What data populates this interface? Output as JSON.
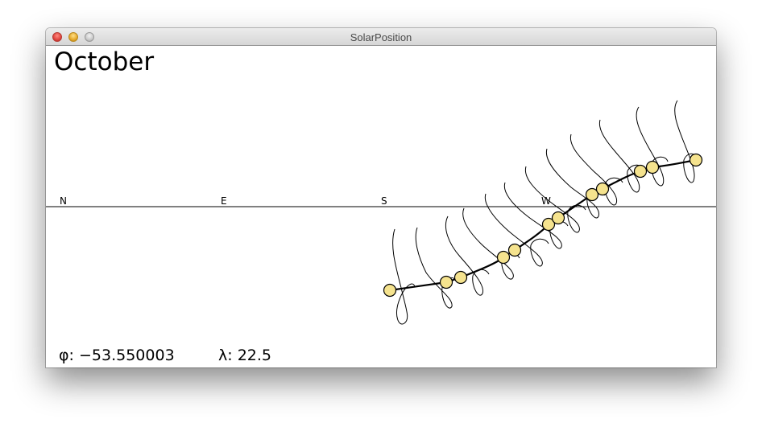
{
  "window": {
    "title": "SolarPosition"
  },
  "main": {
    "month": "October",
    "compass": {
      "n": "N",
      "e": "E",
      "s": "S",
      "w": "W"
    },
    "latitude": {
      "label": "φ:",
      "value": "−53.550003"
    },
    "longitude": {
      "label": "λ:",
      "value": "22.5"
    }
  },
  "colors": {
    "sun_fill": "#f5e38e",
    "sun_stroke": "#000000",
    "line": "#000000"
  }
}
